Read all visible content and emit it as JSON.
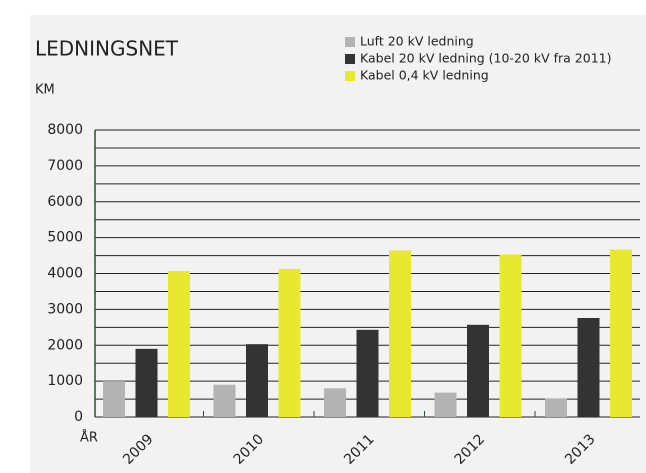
{
  "chart_data": {
    "type": "bar",
    "title": "LEDNINGSNET",
    "y_label": "KM",
    "x_label": "ÅR",
    "categories": [
      "2009",
      "2010",
      "2011",
      "2012",
      "2013"
    ],
    "series": [
      {
        "name": "Luft 20 kV ledning",
        "color": "#b3b3b3",
        "values": [
          1000,
          900,
          800,
          680,
          520
        ]
      },
      {
        "name": "Kabel 20 kV ledning (10-20 kV fra 2011)",
        "color": "#333333",
        "values": [
          1900,
          2030,
          2430,
          2570,
          2760
        ]
      },
      {
        "name": "Kabel 0,4 kV ledning",
        "color": "#e8e831",
        "values": [
          4070,
          4130,
          4640,
          4530,
          4670
        ]
      }
    ],
    "ylim": [
      0,
      8000
    ],
    "yticks": [
      0,
      1000,
      2000,
      3000,
      4000,
      5000,
      6000,
      7000,
      8000
    ],
    "minor_yticks": [
      500,
      1500,
      2500,
      3500,
      4500,
      5500,
      6500,
      7500
    ],
    "grid": true
  }
}
